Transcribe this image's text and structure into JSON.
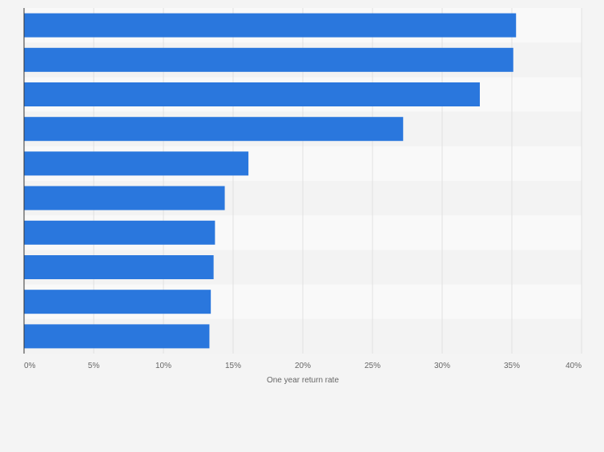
{
  "chart_data": {
    "type": "bar",
    "orientation": "horizontal",
    "categories": [
      "",
      "",
      "",
      "",
      "",
      "",
      "",
      "",
      "",
      ""
    ],
    "values": [
      35.3,
      35.1,
      32.7,
      27.2,
      16.1,
      14.4,
      13.7,
      13.6,
      13.4,
      13.3
    ],
    "xlabel": "One year return rate",
    "ylabel": "",
    "xlim": [
      0,
      40
    ],
    "xticks": [
      0,
      5,
      10,
      15,
      20,
      25,
      30,
      35,
      40
    ],
    "xtick_labels": [
      "0%",
      "5%",
      "10%",
      "15%",
      "20%",
      "25%",
      "30%",
      "35%",
      "40%"
    ],
    "grid": "vertical",
    "legend": "none",
    "bar_color": "#2a77dd",
    "band_colors": [
      "#f9f9f9",
      "#f3f3f3"
    ],
    "background": "#f4f4f4"
  }
}
